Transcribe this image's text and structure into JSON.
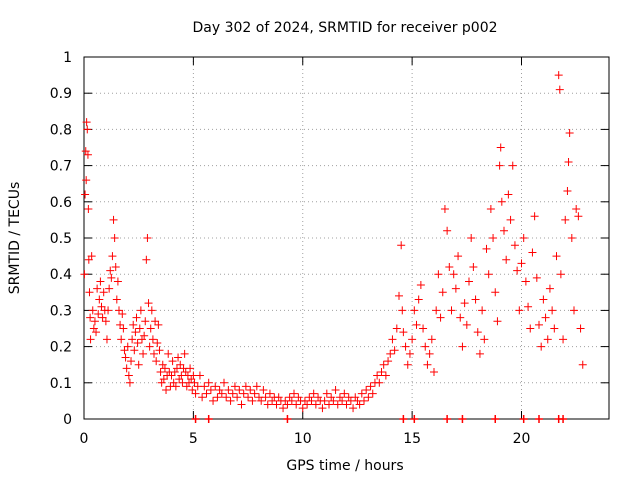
{
  "chart_data": {
    "type": "scatter",
    "title": "Day 302 of 2024, SRMTID for receiver p002",
    "xlabel": "GPS time / hours",
    "ylabel": "SRMTID / TECUs",
    "xlim": [
      0,
      24
    ],
    "ylim": [
      0,
      1
    ],
    "xticks": [
      0,
      5,
      10,
      15,
      20
    ],
    "yticks": [
      0,
      0.1,
      0.2,
      0.3,
      0.4,
      0.5,
      0.6,
      0.7,
      0.8,
      0.9,
      1
    ],
    "ytick_labels": [
      "0",
      "0.1",
      "0.2",
      "0.3",
      "0.4",
      "0.5",
      "0.6",
      "0.7",
      "0.8",
      "0.9",
      "1"
    ],
    "xtick_labels": [
      "0",
      "5",
      "10",
      "15",
      "20"
    ],
    "grid": true,
    "marker": "+",
    "color": "#ff0000",
    "series": [
      {
        "name": "SRMTID",
        "points": [
          [
            0.02,
            0.4
          ],
          [
            0.05,
            0.62
          ],
          [
            0.08,
            0.74
          ],
          [
            0.1,
            0.66
          ],
          [
            0.12,
            0.82
          ],
          [
            0.15,
            0.8
          ],
          [
            0.18,
            0.73
          ],
          [
            0.2,
            0.58
          ],
          [
            0.22,
            0.44
          ],
          [
            0.25,
            0.35
          ],
          [
            0.28,
            0.28
          ],
          [
            0.3,
            0.22
          ],
          [
            0.35,
            0.45
          ],
          [
            0.4,
            0.3
          ],
          [
            0.45,
            0.25
          ],
          [
            0.5,
            0.27
          ],
          [
            0.55,
            0.24
          ],
          [
            0.6,
            0.36
          ],
          [
            0.65,
            0.29
          ],
          [
            0.7,
            0.33
          ],
          [
            0.75,
            0.38
          ],
          [
            0.8,
            0.31
          ],
          [
            0.85,
            0.28
          ],
          [
            0.9,
            0.35
          ],
          [
            0.95,
            0.3
          ],
          [
            1.0,
            0.27
          ],
          [
            1.05,
            0.22
          ],
          [
            1.1,
            0.3
          ],
          [
            1.15,
            0.36
          ],
          [
            1.2,
            0.41
          ],
          [
            1.25,
            0.39
          ],
          [
            1.3,
            0.45
          ],
          [
            1.35,
            0.55
          ],
          [
            1.4,
            0.5
          ],
          [
            1.45,
            0.42
          ],
          [
            1.5,
            0.33
          ],
          [
            1.55,
            0.38
          ],
          [
            1.6,
            0.3
          ],
          [
            1.65,
            0.26
          ],
          [
            1.7,
            0.22
          ],
          [
            1.75,
            0.29
          ],
          [
            1.8,
            0.25
          ],
          [
            1.85,
            0.19
          ],
          [
            1.9,
            0.17
          ],
          [
            1.95,
            0.14
          ],
          [
            2.0,
            0.2
          ],
          [
            2.05,
            0.12
          ],
          [
            2.1,
            0.1
          ],
          [
            2.15,
            0.16
          ],
          [
            2.2,
            0.22
          ],
          [
            2.25,
            0.26
          ],
          [
            2.3,
            0.19
          ],
          [
            2.35,
            0.24
          ],
          [
            2.4,
            0.28
          ],
          [
            2.45,
            0.21
          ],
          [
            2.5,
            0.15
          ],
          [
            2.55,
            0.25
          ],
          [
            2.6,
            0.3
          ],
          [
            2.65,
            0.22
          ],
          [
            2.7,
            0.18
          ],
          [
            2.75,
            0.23
          ],
          [
            2.8,
            0.27
          ],
          [
            2.85,
            0.44
          ],
          [
            2.9,
            0.5
          ],
          [
            2.95,
            0.32
          ],
          [
            3.0,
            0.2
          ],
          [
            3.05,
            0.25
          ],
          [
            3.1,
            0.3
          ],
          [
            3.15,
            0.22
          ],
          [
            3.2,
            0.18
          ],
          [
            3.25,
            0.27
          ],
          [
            3.3,
            0.16
          ],
          [
            3.35,
            0.21
          ],
          [
            3.4,
            0.26
          ],
          [
            3.45,
            0.19
          ],
          [
            3.5,
            0.13
          ],
          [
            3.55,
            0.1
          ],
          [
            3.6,
            0.15
          ],
          [
            3.65,
            0.11
          ],
          [
            3.7,
            0.14
          ],
          [
            3.75,
            0.08
          ],
          [
            3.8,
            0.12
          ],
          [
            3.85,
            0.18
          ],
          [
            3.9,
            0.13
          ],
          [
            3.95,
            0.09
          ],
          [
            4.0,
            0.12
          ],
          [
            4.05,
            0.16
          ],
          [
            4.1,
            0.1
          ],
          [
            4.15,
            0.13
          ],
          [
            4.2,
            0.09
          ],
          [
            4.25,
            0.14
          ],
          [
            4.3,
            0.17
          ],
          [
            4.35,
            0.11
          ],
          [
            4.4,
            0.15
          ],
          [
            4.45,
            0.12
          ],
          [
            4.5,
            0.1
          ],
          [
            4.55,
            0.14
          ],
          [
            4.6,
            0.18
          ],
          [
            4.65,
            0.13
          ],
          [
            4.7,
            0.09
          ],
          [
            4.75,
            0.12
          ],
          [
            4.8,
            0.1
          ],
          [
            4.85,
            0.14
          ],
          [
            4.9,
            0.11
          ],
          [
            4.95,
            0.08
          ],
          [
            5.0,
            0.12
          ],
          [
            5.05,
            0.1
          ],
          [
            5.1,
            0.07
          ],
          [
            5.2,
            0.09
          ],
          [
            5.3,
            0.12
          ],
          [
            5.4,
            0.06
          ],
          [
            5.5,
            0.09
          ],
          [
            5.6,
            0.07
          ],
          [
            5.7,
            0.1
          ],
          [
            5.8,
            0.08
          ],
          [
            5.9,
            0.05
          ],
          [
            6.0,
            0.09
          ],
          [
            6.1,
            0.06
          ],
          [
            6.2,
            0.08
          ],
          [
            6.3,
            0.07
          ],
          [
            6.4,
            0.1
          ],
          [
            6.5,
            0.06
          ],
          [
            6.6,
            0.08
          ],
          [
            6.7,
            0.05
          ],
          [
            6.8,
            0.07
          ],
          [
            6.9,
            0.09
          ],
          [
            7.0,
            0.06
          ],
          [
            7.1,
            0.08
          ],
          [
            7.2,
            0.04
          ],
          [
            7.3,
            0.07
          ],
          [
            7.4,
            0.09
          ],
          [
            7.5,
            0.06
          ],
          [
            7.6,
            0.08
          ],
          [
            7.7,
            0.05
          ],
          [
            7.8,
            0.07
          ],
          [
            7.9,
            0.09
          ],
          [
            8.0,
            0.06
          ],
          [
            8.1,
            0.05
          ],
          [
            8.2,
            0.08
          ],
          [
            8.3,
            0.06
          ],
          [
            8.4,
            0.04
          ],
          [
            8.5,
            0.07
          ],
          [
            8.6,
            0.05
          ],
          [
            8.7,
            0.06
          ],
          [
            8.8,
            0.04
          ],
          [
            8.9,
            0.06
          ],
          [
            9.0,
            0.05
          ],
          [
            9.1,
            0.03
          ],
          [
            9.2,
            0.05
          ],
          [
            9.3,
            0.04
          ],
          [
            9.4,
            0.06
          ],
          [
            9.5,
            0.05
          ],
          [
            9.6,
            0.07
          ],
          [
            9.7,
            0.04
          ],
          [
            9.8,
            0.06
          ],
          [
            9.9,
            0.05
          ],
          [
            10.0,
            0.03
          ],
          [
            10.1,
            0.05
          ],
          [
            10.2,
            0.04
          ],
          [
            10.3,
            0.06
          ],
          [
            10.4,
            0.05
          ],
          [
            10.5,
            0.07
          ],
          [
            10.6,
            0.04
          ],
          [
            10.7,
            0.06
          ],
          [
            10.8,
            0.05
          ],
          [
            10.9,
            0.03
          ],
          [
            11.0,
            0.05
          ],
          [
            11.1,
            0.07
          ],
          [
            11.2,
            0.04
          ],
          [
            11.3,
            0.06
          ],
          [
            11.4,
            0.05
          ],
          [
            11.5,
            0.08
          ],
          [
            11.6,
            0.04
          ],
          [
            11.7,
            0.06
          ],
          [
            11.8,
            0.05
          ],
          [
            11.9,
            0.07
          ],
          [
            12.0,
            0.04
          ],
          [
            12.1,
            0.06
          ],
          [
            12.2,
            0.05
          ],
          [
            12.3,
            0.03
          ],
          [
            12.4,
            0.06
          ],
          [
            12.5,
            0.05
          ],
          [
            12.6,
            0.04
          ],
          [
            12.7,
            0.07
          ],
          [
            12.8,
            0.05
          ],
          [
            12.9,
            0.08
          ],
          [
            13.0,
            0.06
          ],
          [
            13.1,
            0.09
          ],
          [
            13.2,
            0.07
          ],
          [
            13.3,
            0.1
          ],
          [
            13.4,
            0.12
          ],
          [
            13.5,
            0.1
          ],
          [
            13.6,
            0.13
          ],
          [
            13.7,
            0.15
          ],
          [
            13.8,
            0.12
          ],
          [
            13.9,
            0.16
          ],
          [
            14.0,
            0.18
          ],
          [
            14.1,
            0.22
          ],
          [
            14.2,
            0.19
          ],
          [
            14.3,
            0.25
          ],
          [
            14.4,
            0.34
          ],
          [
            14.5,
            0.48
          ],
          [
            14.55,
            0.3
          ],
          [
            14.6,
            0.24
          ],
          [
            14.7,
            0.2
          ],
          [
            14.8,
            0.15
          ],
          [
            14.9,
            0.18
          ],
          [
            15.0,
            0.22
          ],
          [
            15.1,
            0.3
          ],
          [
            15.2,
            0.26
          ],
          [
            15.3,
            0.33
          ],
          [
            15.4,
            0.37
          ],
          [
            15.5,
            0.25
          ],
          [
            15.6,
            0.2
          ],
          [
            15.7,
            0.15
          ],
          [
            15.8,
            0.18
          ],
          [
            15.9,
            0.22
          ],
          [
            16.0,
            0.13
          ],
          [
            16.1,
            0.3
          ],
          [
            16.2,
            0.4
          ],
          [
            16.3,
            0.28
          ],
          [
            16.4,
            0.35
          ],
          [
            16.5,
            0.58
          ],
          [
            16.6,
            0.52
          ],
          [
            16.7,
            0.42
          ],
          [
            16.8,
            0.3
          ],
          [
            16.9,
            0.4
          ],
          [
            17.0,
            0.36
          ],
          [
            17.1,
            0.45
          ],
          [
            17.2,
            0.28
          ],
          [
            17.3,
            0.2
          ],
          [
            17.4,
            0.32
          ],
          [
            17.5,
            0.26
          ],
          [
            17.6,
            0.38
          ],
          [
            17.7,
            0.5
          ],
          [
            17.8,
            0.42
          ],
          [
            17.9,
            0.33
          ],
          [
            18.0,
            0.24
          ],
          [
            18.1,
            0.18
          ],
          [
            18.2,
            0.3
          ],
          [
            18.3,
            0.22
          ],
          [
            18.4,
            0.47
          ],
          [
            18.5,
            0.4
          ],
          [
            18.6,
            0.58
          ],
          [
            18.7,
            0.5
          ],
          [
            18.8,
            0.35
          ],
          [
            18.9,
            0.27
          ],
          [
            19.0,
            0.7
          ],
          [
            19.05,
            0.75
          ],
          [
            19.1,
            0.6
          ],
          [
            19.2,
            0.52
          ],
          [
            19.3,
            0.44
          ],
          [
            19.4,
            0.62
          ],
          [
            19.5,
            0.55
          ],
          [
            19.6,
            0.7
          ],
          [
            19.7,
            0.48
          ],
          [
            19.8,
            0.41
          ],
          [
            19.9,
            0.3
          ],
          [
            20.0,
            0.43
          ],
          [
            20.1,
            0.5
          ],
          [
            20.2,
            0.38
          ],
          [
            20.3,
            0.31
          ],
          [
            20.4,
            0.25
          ],
          [
            20.5,
            0.46
          ],
          [
            20.6,
            0.56
          ],
          [
            20.7,
            0.39
          ],
          [
            20.8,
            0.26
          ],
          [
            20.9,
            0.2
          ],
          [
            21.0,
            0.33
          ],
          [
            21.1,
            0.28
          ],
          [
            21.2,
            0.22
          ],
          [
            21.3,
            0.36
          ],
          [
            21.4,
            0.3
          ],
          [
            21.5,
            0.25
          ],
          [
            21.6,
            0.45
          ],
          [
            21.7,
            0.95
          ],
          [
            21.75,
            0.91
          ],
          [
            21.8,
            0.4
          ],
          [
            21.9,
            0.22
          ],
          [
            22.0,
            0.55
          ],
          [
            22.1,
            0.63
          ],
          [
            22.15,
            0.71
          ],
          [
            22.2,
            0.79
          ],
          [
            22.3,
            0.5
          ],
          [
            22.4,
            0.3
          ],
          [
            22.5,
            0.58
          ],
          [
            22.6,
            0.56
          ],
          [
            22.7,
            0.25
          ],
          [
            22.8,
            0.15
          ]
        ],
        "zero_markers": [
          5.1,
          5.7,
          9.3,
          14.6,
          15.1,
          16.6,
          17.3,
          18.8,
          20.1,
          20.8,
          21.7,
          21.9
        ]
      }
    ]
  }
}
